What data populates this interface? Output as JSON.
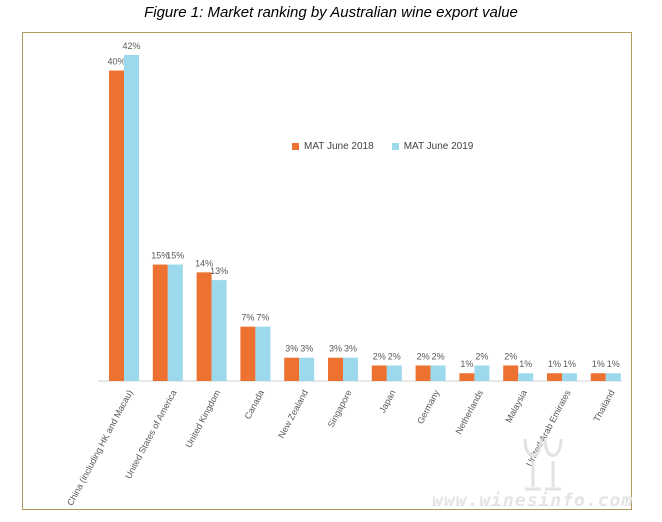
{
  "title": "Figure 1: Market ranking by Australian wine export value",
  "watermark": "www.winesinfo.com",
  "colors": {
    "series1": "#ED7232",
    "series2": "#9DD9EC",
    "axis": "#d0d0d0",
    "label": "#595959",
    "border": "#b29a5c"
  },
  "chart_data": {
    "type": "bar",
    "title": "Figure 1: Market ranking by Australian wine export value",
    "categories": [
      "China (including HK and Macau)",
      "United States of America",
      "United Kingdom",
      "Canada",
      "New Zealand",
      "Singapore",
      "Japan",
      "Germany",
      "Netherlands",
      "Malaysia",
      "United Arab Emirates",
      "Thailand"
    ],
    "series": [
      {
        "name": "MAT June 2018",
        "values": [
          40,
          15,
          14,
          7,
          3,
          3,
          2,
          2,
          1,
          2,
          1,
          1
        ],
        "labels": [
          "40%",
          "15%",
          "14%",
          "7%",
          "3%",
          "3%",
          "2%",
          "2%",
          "1%",
          "2%",
          "1%",
          "1%"
        ]
      },
      {
        "name": "MAT June 2019",
        "values": [
          42,
          15,
          13,
          7,
          3,
          3,
          2,
          2,
          2,
          1,
          1,
          1
        ],
        "labels": [
          "42%",
          "15%",
          "13%",
          "7%",
          "3%",
          "3%",
          "2%",
          "2%",
          "2%",
          "1%",
          "1%",
          "1%"
        ]
      }
    ],
    "legend_position": "top-right",
    "grid": false
  }
}
